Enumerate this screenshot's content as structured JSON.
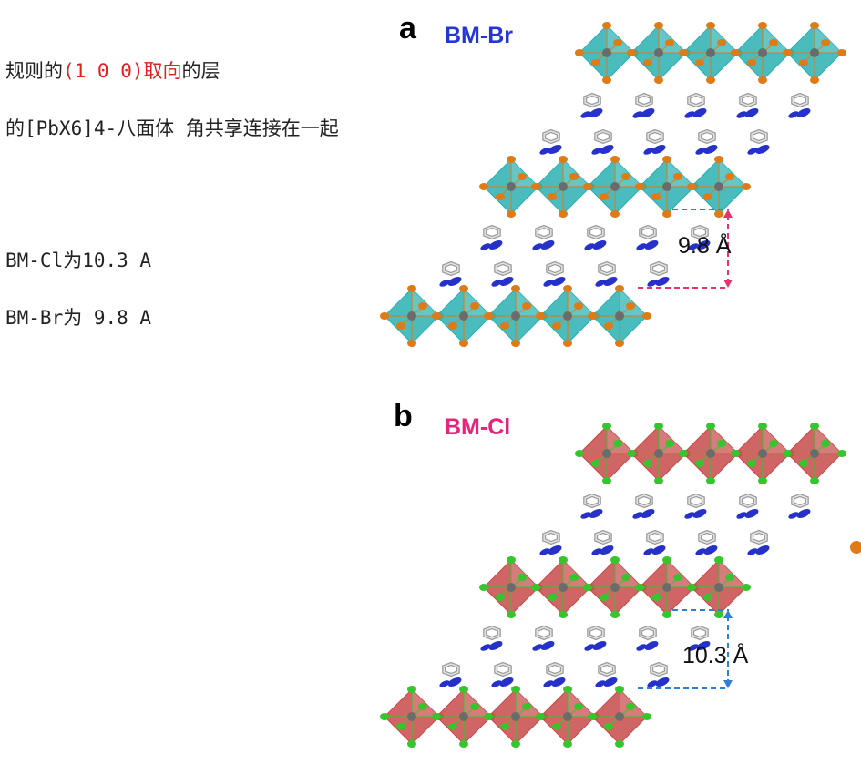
{
  "notes": {
    "line1_prefix": "规则的",
    "line1_highlight": "(1 0 0)取向",
    "line1_suffix": "的层",
    "line2": "的[PbX6]4-八面体 角共享连接在一起",
    "line3": "BM-Cl为10.3 A",
    "line4": "BM-Br为 9.8 A"
  },
  "panel_a": {
    "letter": "a",
    "name": "BM-Br",
    "name_color": "#2436d6",
    "octahedron_color": "#2ab0b3",
    "halide_color": "#e07a17",
    "distance_label": "9.8 Å",
    "dimension_color": "#e8326b"
  },
  "panel_b": {
    "letter": "b",
    "name": "BM-Cl",
    "name_color": "#e8237a",
    "octahedron_color": "#c84a4a",
    "halide_color": "#35c52c",
    "distance_label": "10.3 Å",
    "dimension_color": "#2f7fd6"
  },
  "colors": {
    "highlight_text": "#e0201e",
    "lead_center": "#6b6b6b",
    "nitrogen": "#2531c9",
    "carbon_ring": "#9a9a9a"
  }
}
